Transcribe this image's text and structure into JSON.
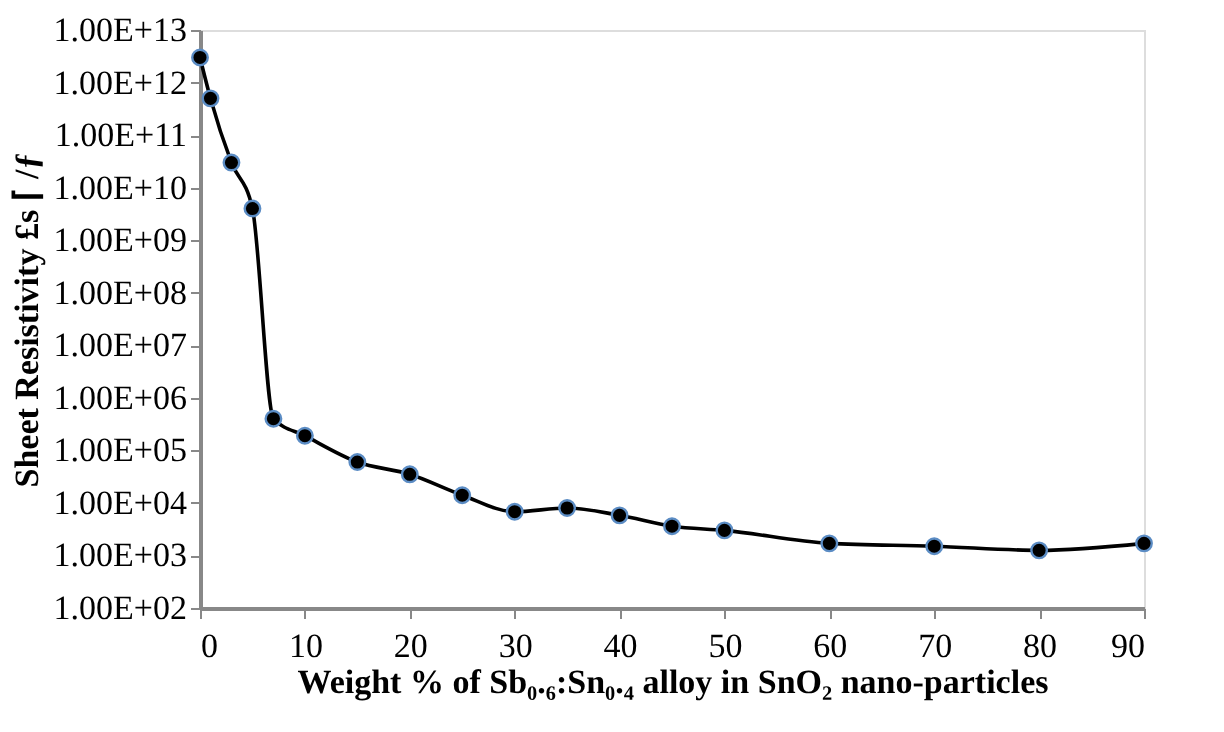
{
  "chart_data": {
    "type": "line",
    "xlabel": "Weight % of Sb₀.₆:Sn₀.₄ alloy in SnO₂ nano-particles",
    "ylabel": "Sheet Resistivity £s ⌈ /ƒ",
    "x": [
      0,
      1,
      3,
      5,
      7,
      10,
      15,
      20,
      25,
      30,
      35,
      40,
      45,
      50,
      60,
      70,
      80,
      90
    ],
    "series": [
      {
        "color": "#000000",
        "values": [
          3000000000000.0,
          500000000000.0,
          30000000000.0,
          4000000000.0,
          400000.0,
          190000.0,
          60000.0,
          35000.0,
          14000.0,
          6800.0,
          8000.0,
          5800.0,
          3600.0,
          3000.0,
          1700.0,
          1500.0,
          1250.0,
          1700.0
        ]
      }
    ],
    "log": "y",
    "marker": "circle",
    "line_style": "solid",
    "grid": false,
    "xlim": [
      0,
      90
    ],
    "xticks": [
      0,
      10,
      20,
      30,
      40,
      50,
      60,
      70,
      80,
      90
    ],
    "ylim": [
      100,
      10000000000000.0
    ],
    "yticks": [
      {
        "value": 100.0,
        "label": "1.00E+02"
      },
      {
        "value": 1000.0,
        "label": "1.00E+03"
      },
      {
        "value": 10000.0,
        "label": "1.00E+04"
      },
      {
        "value": 100000.0,
        "label": "1.00E+05"
      },
      {
        "value": 1000000.0,
        "label": "1.00E+06"
      },
      {
        "value": 10000000.0,
        "label": "1.00E+07"
      },
      {
        "value": 100000000.0,
        "label": "1.00E+08"
      },
      {
        "value": 1000000000.0,
        "label": "1.00E+09"
      },
      {
        "value": 10000000000.0,
        "label": "1.00E+10"
      },
      {
        "value": 100000000000.0,
        "label": "1.00E+11"
      },
      {
        "value": 1000000000000.0,
        "label": "1.00E+12"
      },
      {
        "value": 10000000000000.0,
        "label": "1.00E+13"
      }
    ]
  }
}
